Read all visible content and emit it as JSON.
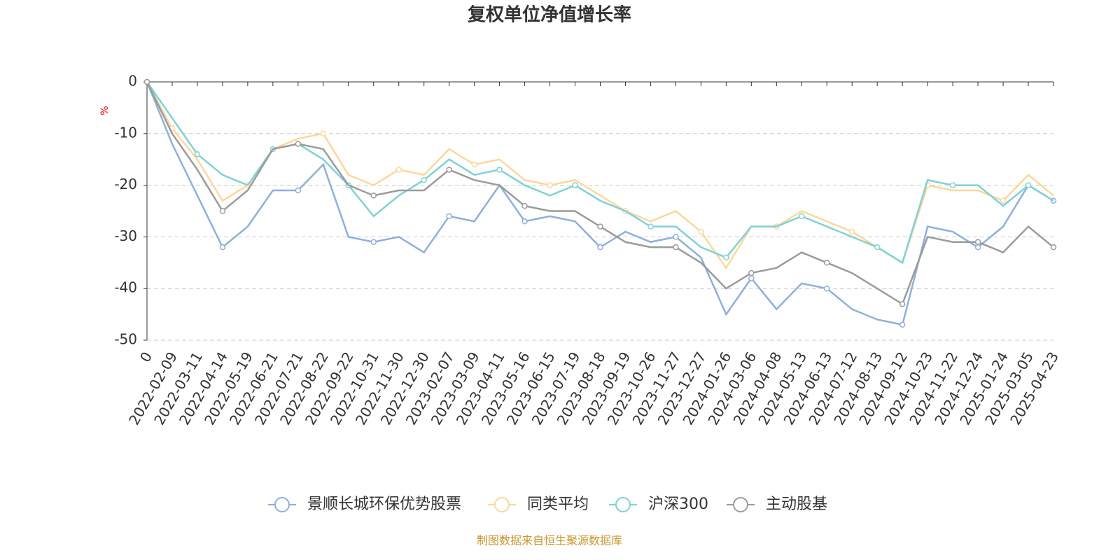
{
  "chart_data": {
    "type": "line",
    "title": "复权单位净值增长率",
    "y_label": "%",
    "source": "制图数据来自恒生聚源数据库",
    "categories": [
      "0",
      "2022-02-09",
      "2022-03-11",
      "2022-04-14",
      "2022-05-19",
      "2022-06-21",
      "2022-07-21",
      "2022-08-22",
      "2022-09-22",
      "2022-10-31",
      "2022-11-30",
      "2022-12-30",
      "2023-02-07",
      "2023-03-09",
      "2023-04-11",
      "2023-05-16",
      "2023-06-15",
      "2023-07-19",
      "2023-08-18",
      "2023-09-19",
      "2023-10-26",
      "2023-11-27",
      "2023-12-27",
      "2024-01-26",
      "2024-03-06",
      "2024-04-08",
      "2024-05-13",
      "2024-06-13",
      "2024-07-12",
      "2024-08-13",
      "2024-09-12",
      "2024-10-23",
      "2024-11-22",
      "2024-12-24",
      "2025-01-24",
      "2025-03-05",
      "2025-04-23"
    ],
    "series": [
      {
        "name": "景顺长城环保优势股票",
        "color": "#8eb0dc",
        "values": [
          0,
          -12,
          -22,
          -32,
          -28,
          -21,
          -21,
          -16,
          -30,
          -31,
          -30,
          -33,
          -26,
          -27,
          -20,
          -27,
          -26,
          -27,
          -32,
          -29,
          -31,
          -30,
          -34,
          -45,
          -38,
          -44,
          -39,
          -40,
          -44,
          -46,
          -47,
          -28,
          -29,
          -32,
          -28,
          -20,
          -23
        ]
      },
      {
        "name": "同类平均",
        "color": "#fdd79a",
        "values": [
          0,
          -9,
          -15,
          -23,
          -20,
          -13,
          -11,
          -10,
          -18,
          -20,
          -17,
          -18,
          -13,
          -16,
          -15,
          -19,
          -20,
          -19,
          -22,
          -25,
          -27,
          -25,
          -29,
          -36,
          -28,
          -28,
          -25,
          -27,
          -29,
          -32,
          -35,
          -20,
          -21,
          -21,
          -23,
          -18,
          -22
        ]
      },
      {
        "name": "沪深300",
        "color": "#7fd2d6",
        "values": [
          0,
          -7,
          -14,
          -18,
          -20,
          -13,
          -12,
          -15,
          -20,
          -26,
          -22,
          -19,
          -15,
          -18,
          -17,
          -20,
          -22,
          -20,
          -23,
          -25,
          -28,
          -28,
          -32,
          -34,
          -28,
          -28,
          -26,
          -28,
          -30,
          -32,
          -35,
          -19,
          -20,
          -20,
          -24,
          -20,
          -23
        ]
      },
      {
        "name": "主动股基",
        "color": "#9b9b9b",
        "values": [
          0,
          -10,
          -17,
          -25,
          -21,
          -13,
          -12,
          -13,
          -20,
          -22,
          -21,
          -21,
          -17,
          -19,
          -20,
          -24,
          -25,
          -25,
          -28,
          -31,
          -32,
          -32,
          -35,
          -40,
          -37,
          -36,
          -33,
          -35,
          -37,
          -40,
          -43,
          -30,
          -31,
          -31,
          -33,
          -28,
          -32
        ]
      }
    ],
    "ylim": [
      -50,
      0
    ],
    "yticks": [
      0,
      -10,
      -20,
      -30,
      -40,
      -50
    ],
    "grid": true,
    "legend": "bottom"
  }
}
